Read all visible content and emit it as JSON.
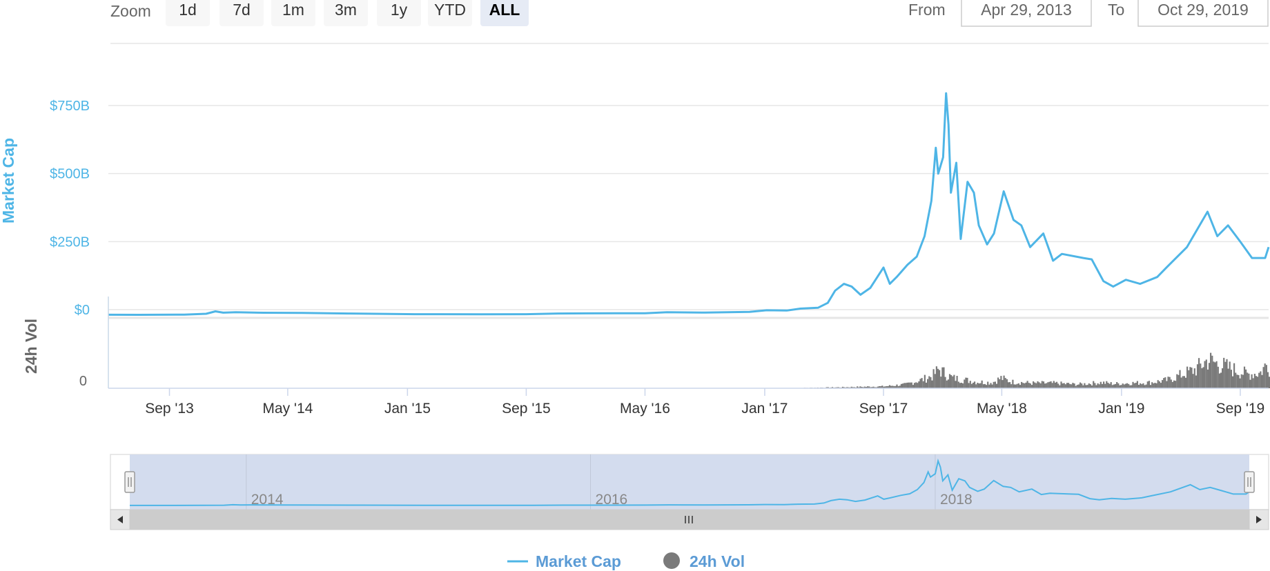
{
  "zoom": {
    "label": "Zoom",
    "buttons": [
      {
        "label": "1d",
        "active": false
      },
      {
        "label": "7d",
        "active": false
      },
      {
        "label": "1m",
        "active": false
      },
      {
        "label": "3m",
        "active": false
      },
      {
        "label": "1y",
        "active": false
      },
      {
        "label": "YTD",
        "active": false
      },
      {
        "label": "ALL",
        "active": true
      }
    ]
  },
  "range": {
    "from_label": "From",
    "from_value": "Apr 29, 2013",
    "to_label": "To",
    "to_value": "Oct 29, 2019"
  },
  "colors": {
    "market_cap": "#4eb5e6",
    "volume": "#7a7a7a",
    "navigator_fill": "#d3dcee"
  },
  "chart_data": {
    "type": "line",
    "x_type": "date",
    "xlim": [
      "2013-04-29",
      "2019-10-29"
    ],
    "x_ticks": [
      "Sep '13",
      "May '14",
      "Jan '15",
      "Sep '15",
      "May '16",
      "Jan '17",
      "Sep '17",
      "May '18",
      "Jan '19",
      "Sep '19"
    ],
    "x_tick_dates": [
      "2013-09-01",
      "2014-05-01",
      "2015-01-01",
      "2015-09-01",
      "2016-05-01",
      "2017-01-01",
      "2017-09-01",
      "2018-05-01",
      "2019-01-01",
      "2019-09-01"
    ],
    "market_cap": {
      "axis_title": "Market Cap",
      "y_ticks": [
        "$0",
        "$250B",
        "$500B",
        "$750B"
      ],
      "y_tick_values": [
        0,
        250,
        500,
        750
      ],
      "unit": "B",
      "ylim": [
        0,
        900
      ],
      "series": [
        {
          "name": "Market Cap",
          "points": [
            [
              "2013-04-29",
              1.6
            ],
            [
              "2013-07-01",
              1.2
            ],
            [
              "2013-10-01",
              2.0
            ],
            [
              "2013-11-15",
              5
            ],
            [
              "2013-12-04",
              14
            ],
            [
              "2013-12-20",
              9
            ],
            [
              "2014-01-15",
              11
            ],
            [
              "2014-03-01",
              9
            ],
            [
              "2014-06-01",
              8
            ],
            [
              "2014-09-01",
              6
            ],
            [
              "2015-01-15",
              3.5
            ],
            [
              "2015-06-01",
              3.4
            ],
            [
              "2015-09-01",
              3.6
            ],
            [
              "2015-11-05",
              6
            ],
            [
              "2016-01-01",
              6.5
            ],
            [
              "2016-05-01",
              7
            ],
            [
              "2016-06-15",
              11
            ],
            [
              "2016-09-01",
              9.5
            ],
            [
              "2016-12-01",
              12
            ],
            [
              "2017-01-05",
              18
            ],
            [
              "2017-02-15",
              17
            ],
            [
              "2017-03-15",
              24
            ],
            [
              "2017-04-20",
              27
            ],
            [
              "2017-05-10",
              45
            ],
            [
              "2017-05-25",
              90
            ],
            [
              "2017-06-12",
              115
            ],
            [
              "2017-06-28",
              105
            ],
            [
              "2017-07-16",
              75
            ],
            [
              "2017-08-05",
              100
            ],
            [
              "2017-09-01",
              175
            ],
            [
              "2017-09-14",
              115
            ],
            [
              "2017-09-28",
              140
            ],
            [
              "2017-10-20",
              185
            ],
            [
              "2017-11-08",
              215
            ],
            [
              "2017-11-24",
              290
            ],
            [
              "2017-12-08",
              420
            ],
            [
              "2017-12-17",
              615
            ],
            [
              "2017-12-22",
              520
            ],
            [
              "2018-01-01",
              580
            ],
            [
              "2018-01-07",
              815
            ],
            [
              "2018-01-12",
              700
            ],
            [
              "2018-01-17",
              450
            ],
            [
              "2018-01-28",
              560
            ],
            [
              "2018-02-06",
              280
            ],
            [
              "2018-02-20",
              490
            ],
            [
              "2018-03-05",
              450
            ],
            [
              "2018-03-15",
              330
            ],
            [
              "2018-04-01",
              260
            ],
            [
              "2018-04-15",
              300
            ],
            [
              "2018-05-05",
              455
            ],
            [
              "2018-05-25",
              350
            ],
            [
              "2018-06-10",
              330
            ],
            [
              "2018-06-28",
              250
            ],
            [
              "2018-07-25",
              300
            ],
            [
              "2018-08-14",
              200
            ],
            [
              "2018-09-01",
              225
            ],
            [
              "2018-10-15",
              210
            ],
            [
              "2018-11-01",
              205
            ],
            [
              "2018-11-25",
              125
            ],
            [
              "2018-12-15",
              105
            ],
            [
              "2019-01-10",
              130
            ],
            [
              "2019-02-08",
              115
            ],
            [
              "2019-03-15",
              140
            ],
            [
              "2019-04-03",
              175
            ],
            [
              "2019-05-15",
              250
            ],
            [
              "2019-06-26",
              380
            ],
            [
              "2019-07-16",
              290
            ],
            [
              "2019-08-07",
              330
            ],
            [
              "2019-09-01",
              270
            ],
            [
              "2019-09-25",
              210
            ],
            [
              "2019-10-22",
              210
            ],
            [
              "2019-10-29",
              250
            ]
          ]
        }
      ]
    },
    "volume": {
      "axis_title": "24h Vol",
      "y_ticks": [
        "0"
      ],
      "y_tick_values": [
        0
      ],
      "unit": "B",
      "ylim": [
        0,
        100
      ],
      "series": [
        {
          "name": "24h Vol",
          "points": [
            [
              "2013-04-29",
              0
            ],
            [
              "2017-03-01",
              0.3
            ],
            [
              "2017-06-01",
              1.5
            ],
            [
              "2017-09-01",
              3
            ],
            [
              "2017-10-15",
              6
            ],
            [
              "2017-11-20",
              14
            ],
            [
              "2017-12-10",
              20
            ],
            [
              "2017-12-22",
              30
            ],
            [
              "2018-01-05",
              22
            ],
            [
              "2018-01-20",
              16
            ],
            [
              "2018-02-06",
              14
            ],
            [
              "2018-03-10",
              10
            ],
            [
              "2018-04-10",
              9
            ],
            [
              "2018-04-28",
              16
            ],
            [
              "2018-05-20",
              10
            ],
            [
              "2018-07-01",
              8
            ],
            [
              "2018-08-15",
              8
            ],
            [
              "2018-10-01",
              6
            ],
            [
              "2018-11-20",
              9
            ],
            [
              "2018-12-15",
              7
            ],
            [
              "2019-01-15",
              8
            ],
            [
              "2019-03-01",
              9
            ],
            [
              "2019-04-05",
              13
            ],
            [
              "2019-05-15",
              25
            ],
            [
              "2019-06-01",
              30
            ],
            [
              "2019-06-26",
              45
            ],
            [
              "2019-07-15",
              38
            ],
            [
              "2019-08-15",
              30
            ],
            [
              "2019-09-15",
              22
            ],
            [
              "2019-10-10",
              24
            ],
            [
              "2019-10-26",
              40
            ],
            [
              "2019-10-29",
              33
            ]
          ]
        }
      ]
    },
    "navigator": {
      "year_labels": [
        "2014",
        "2016",
        "2018"
      ],
      "year_dates": [
        "2014-01-01",
        "2016-01-01",
        "2018-01-01"
      ],
      "selection": [
        "2013-04-29",
        "2019-10-29"
      ]
    },
    "legend": {
      "placement": "bottom-center",
      "items": [
        "Market Cap",
        "24h Vol"
      ]
    },
    "grid": true
  }
}
